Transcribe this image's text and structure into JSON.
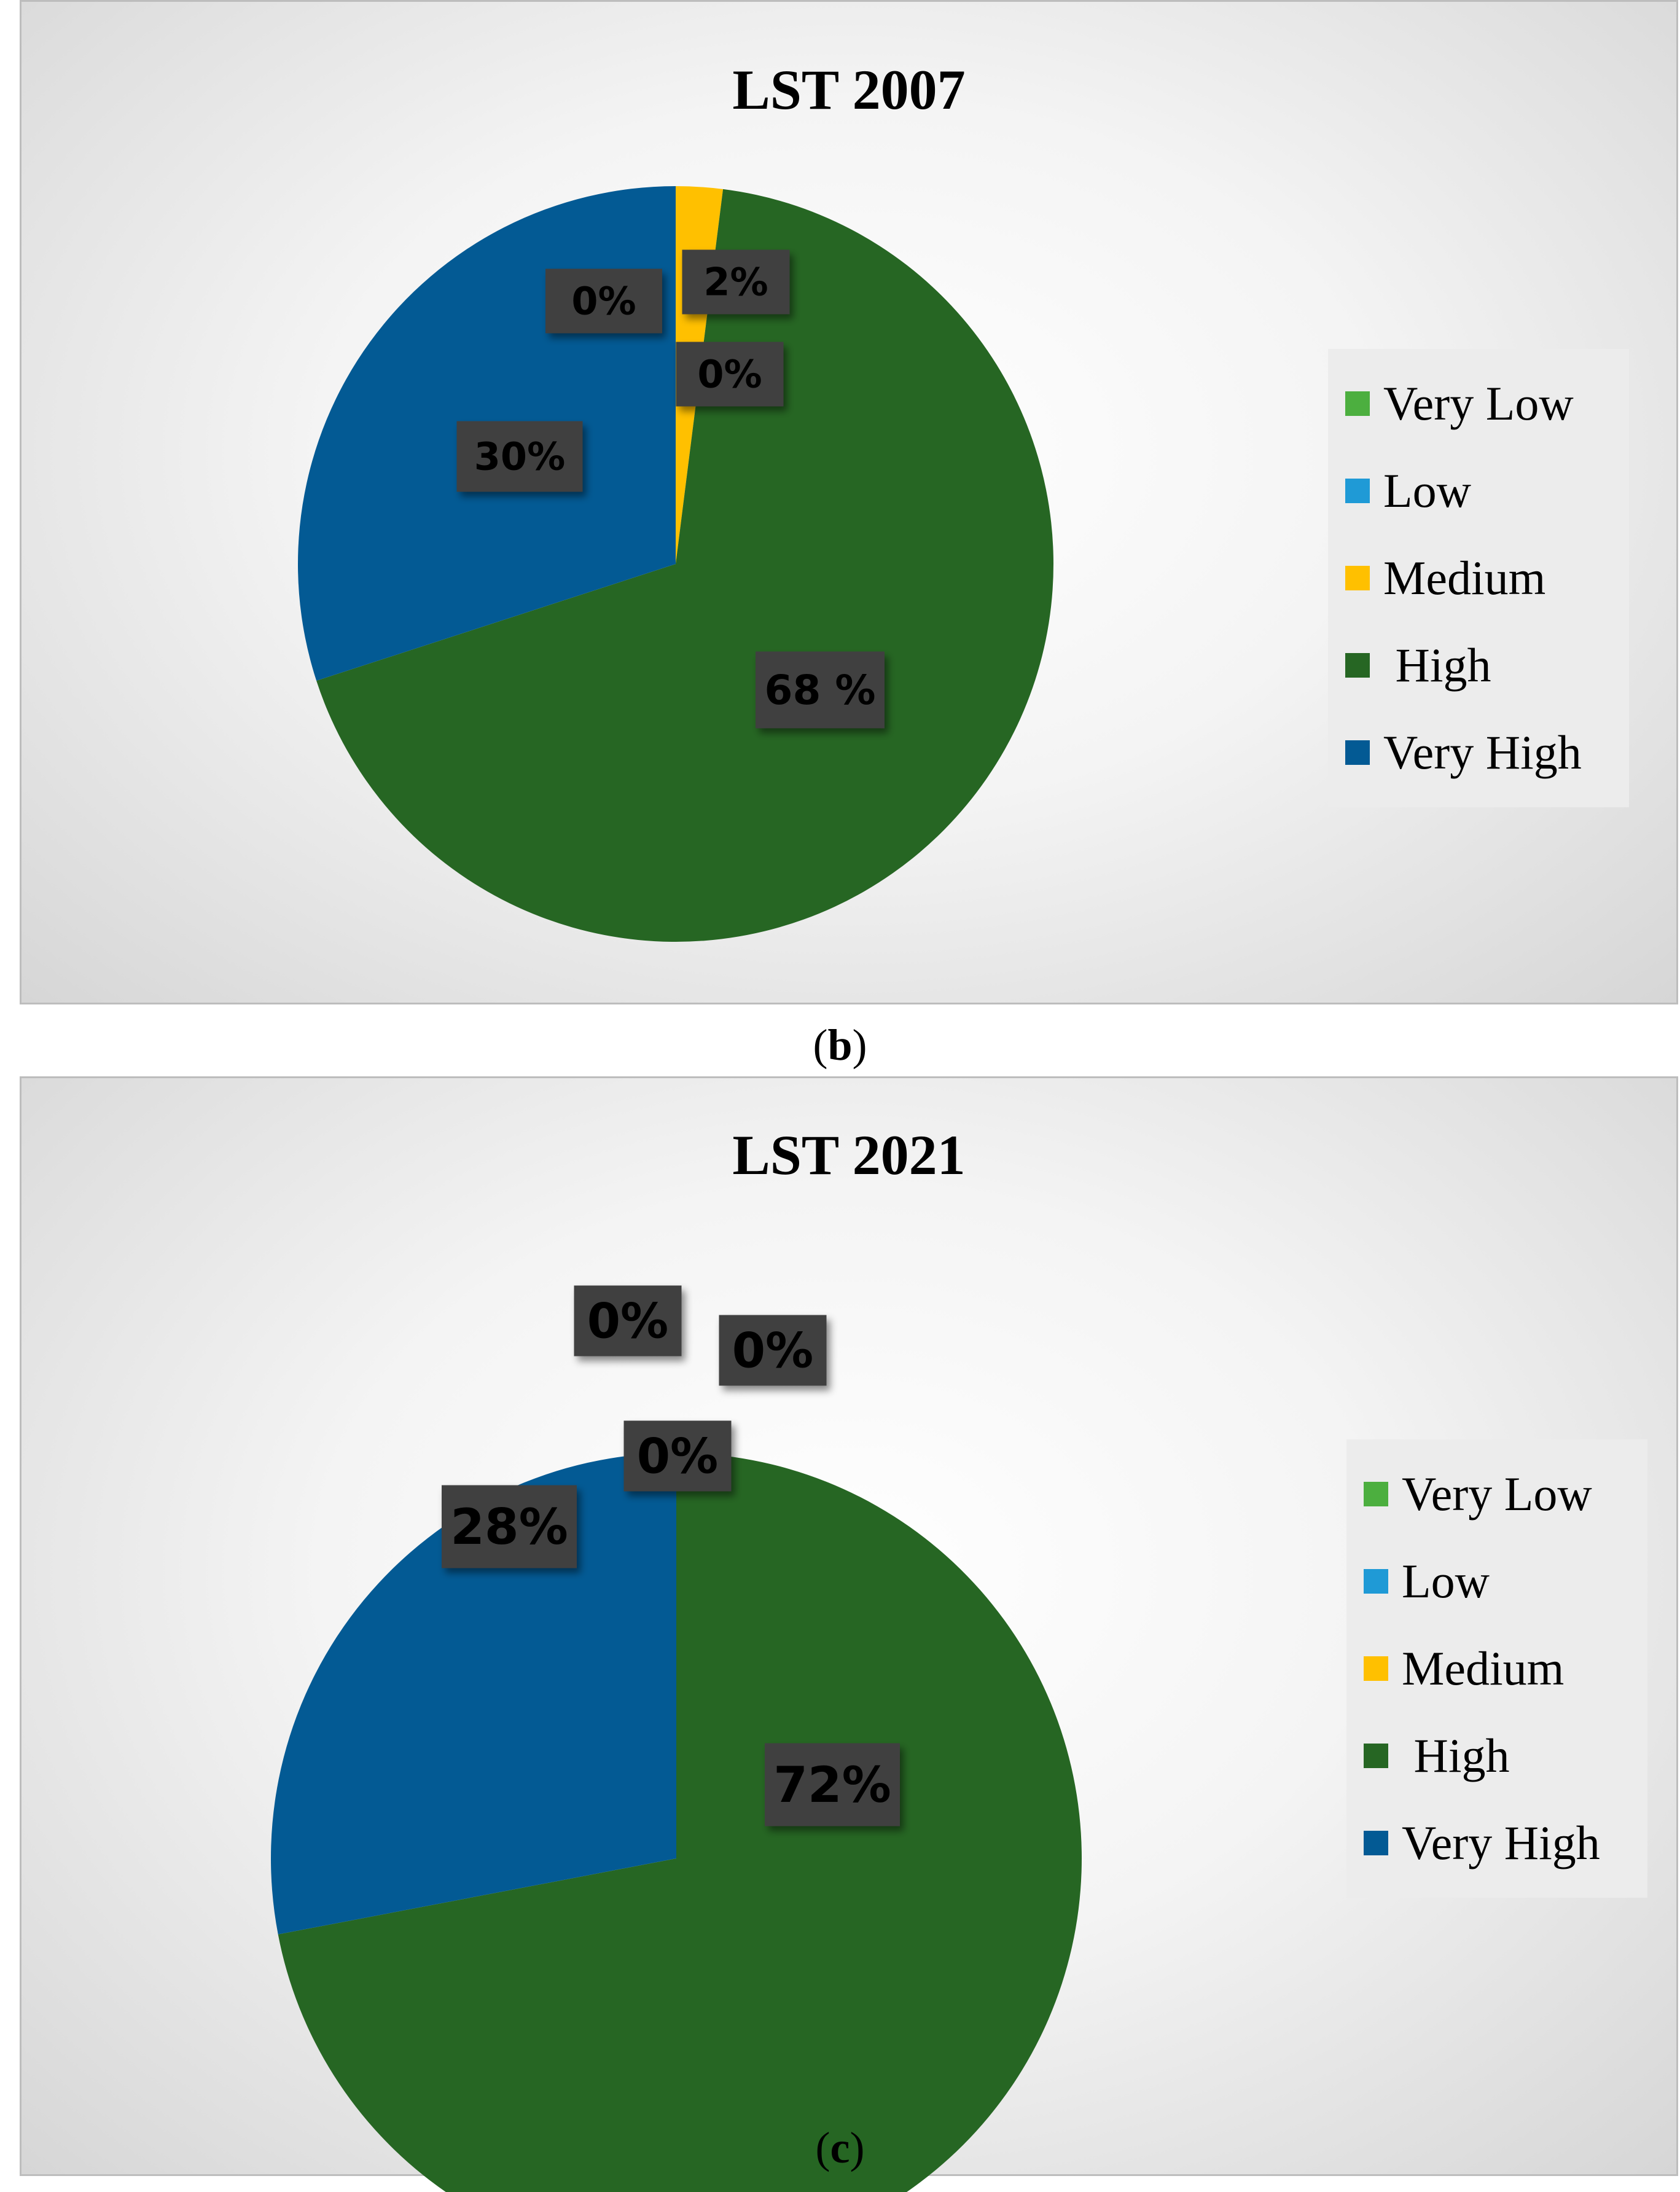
{
  "chart_data": [
    {
      "type": "pie",
      "title": "LST 2007",
      "caption_letter": "b",
      "categories": [
        "Very Low",
        "Low",
        "Medium",
        "High",
        "Very High"
      ],
      "legend_labels": [
        "Very Low",
        "Low",
        "Medium",
        " High",
        "Very High"
      ],
      "values": [
        0,
        0,
        2,
        68,
        30
      ],
      "data_labels": [
        "0%",
        "0%",
        "2%",
        "68 %",
        "30%"
      ],
      "colors": [
        "#4caf3f",
        "#1f9ad6",
        "#ffc000",
        "#266623",
        "#035a94"
      ]
    },
    {
      "type": "pie",
      "title": "LST 2021",
      "caption_letter": "c",
      "categories": [
        "Very Low",
        "Low",
        "Medium",
        "High",
        "Very High"
      ],
      "legend_labels": [
        "Very Low",
        "Low",
        "Medium",
        " High",
        "Very High"
      ],
      "values": [
        0,
        0,
        0,
        72,
        28
      ],
      "data_labels": [
        "0%",
        "0%",
        "0%",
        "72%",
        "28%"
      ],
      "colors": [
        "#4caf3f",
        "#1f9ad6",
        "#ffc000",
        "#266623",
        "#035a94"
      ]
    }
  ]
}
